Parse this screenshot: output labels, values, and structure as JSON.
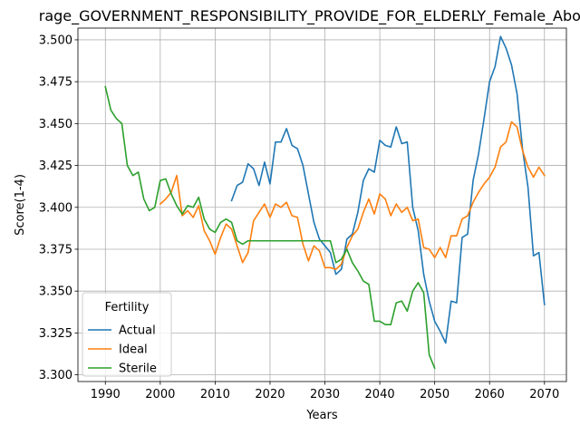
{
  "chart_data": {
    "type": "line",
    "title": "rage_GOVERNMENT_RESPONSIBILITY_PROVIDE_FOR_ELDERLY_Female_Above_",
    "xlabel": "Years",
    "ylabel": "Score(1-4)",
    "xlim": [
      1985,
      2074
    ],
    "ylim": [
      3.296,
      3.507
    ],
    "xticks": [
      1990,
      2000,
      2010,
      2020,
      2030,
      2040,
      2050,
      2060,
      2070
    ],
    "yticks": [
      3.3,
      3.325,
      3.35,
      3.375,
      3.4,
      3.425,
      3.45,
      3.475,
      3.5
    ],
    "ytick_labels": [
      "3.300",
      "3.325",
      "3.350",
      "3.375",
      "3.400",
      "3.425",
      "3.450",
      "3.475",
      "3.500"
    ],
    "grid": true,
    "legend": {
      "title": "Fertility",
      "position": "bottom-left"
    },
    "series": [
      {
        "name": "Actual",
        "color": "#1f77b4",
        "x": [
          2013,
          2014,
          2015,
          2016,
          2017,
          2018,
          2019,
          2020,
          2021,
          2022,
          2023,
          2024,
          2025,
          2026,
          2027,
          2028,
          2029,
          2030,
          2031,
          2032,
          2033,
          2034,
          2035,
          2036,
          2037,
          2038,
          2039,
          2040,
          2041,
          2042,
          2043,
          2044,
          2045,
          2046,
          2047,
          2048,
          2049,
          2050,
          2051,
          2052,
          2053,
          2054,
          2055,
          2056,
          2057,
          2058,
          2059,
          2060,
          2061,
          2062,
          2063,
          2064,
          2065,
          2066,
          2067,
          2068,
          2069,
          2070
        ],
        "values": [
          3.404,
          3.413,
          3.415,
          3.426,
          3.423,
          3.413,
          3.427,
          3.414,
          3.439,
          3.439,
          3.447,
          3.437,
          3.435,
          3.425,
          3.408,
          3.391,
          3.381,
          3.377,
          3.373,
          3.36,
          3.363,
          3.381,
          3.384,
          3.397,
          3.416,
          3.423,
          3.421,
          3.44,
          3.437,
          3.436,
          3.448,
          3.438,
          3.439,
          3.4,
          3.386,
          3.36,
          3.344,
          3.332,
          3.326,
          3.319,
          3.344,
          3.343,
          3.382,
          3.384,
          3.416,
          3.432,
          3.453,
          3.475,
          3.484,
          3.502,
          3.495,
          3.485,
          3.468,
          3.435,
          3.412,
          3.371,
          3.373,
          3.342
        ]
      },
      {
        "name": "Ideal",
        "color": "#ff7f0e",
        "x": [
          2000,
          2001,
          2002,
          2003,
          2004,
          2005,
          2006,
          2007,
          2008,
          2009,
          2010,
          2011,
          2012,
          2013,
          2014,
          2015,
          2016,
          2017,
          2018,
          2019,
          2020,
          2021,
          2022,
          2023,
          2024,
          2025,
          2026,
          2027,
          2028,
          2029,
          2030,
          2031,
          2032,
          2033,
          2034,
          2035,
          2036,
          2037,
          2038,
          2039,
          2040,
          2041,
          2042,
          2043,
          2044,
          2045,
          2046,
          2047,
          2048,
          2049,
          2050,
          2051,
          2052,
          2053,
          2054,
          2055,
          2056,
          2057,
          2058,
          2059,
          2060,
          2061,
          2062,
          2063,
          2064,
          2065,
          2066,
          2067,
          2068,
          2069,
          2070
        ],
        "values": [
          3.402,
          3.405,
          3.409,
          3.419,
          3.395,
          3.398,
          3.394,
          3.401,
          3.386,
          3.38,
          3.372,
          3.382,
          3.39,
          3.387,
          3.377,
          3.367,
          3.373,
          3.392,
          3.397,
          3.402,
          3.394,
          3.402,
          3.4,
          3.403,
          3.395,
          3.394,
          3.378,
          3.368,
          3.377,
          3.374,
          3.364,
          3.364,
          3.363,
          3.366,
          3.376,
          3.383,
          3.387,
          3.397,
          3.405,
          3.396,
          3.408,
          3.405,
          3.395,
          3.402,
          3.397,
          3.4,
          3.392,
          3.393,
          3.376,
          3.375,
          3.37,
          3.376,
          3.37,
          3.383,
          3.383,
          3.393,
          3.395,
          3.403,
          3.409,
          3.414,
          3.418,
          3.424,
          3.436,
          3.439,
          3.451,
          3.448,
          3.434,
          3.424,
          3.418,
          3.424,
          3.419
        ]
      },
      {
        "name": "Sterile",
        "color": "#2ca02c",
        "x": [
          1990,
          1991,
          1992,
          1993,
          1994,
          1995,
          1996,
          1997,
          1998,
          1999,
          2000,
          2001,
          2002,
          2003,
          2004,
          2005,
          2006,
          2007,
          2008,
          2009,
          2010,
          2011,
          2012,
          2013,
          2014,
          2015,
          2016,
          2017,
          2018,
          2019,
          2020,
          2021,
          2022,
          2023,
          2024,
          2025,
          2026,
          2027,
          2028,
          2029,
          2030,
          2031,
          2032,
          2033,
          2034,
          2035,
          2036,
          2037,
          2038,
          2039,
          2040,
          2041,
          2042,
          2043,
          2044,
          2045,
          2046,
          2047,
          2048,
          2049,
          2050
        ],
        "values": [
          3.472,
          3.458,
          3.453,
          3.45,
          3.425,
          3.419,
          3.421,
          3.405,
          3.398,
          3.4,
          3.416,
          3.417,
          3.408,
          3.401,
          3.396,
          3.401,
          3.4,
          3.406,
          3.393,
          3.387,
          3.385,
          3.391,
          3.393,
          3.391,
          3.38,
          3.378,
          3.38,
          3.38,
          3.38,
          3.38,
          3.38,
          3.38,
          3.38,
          3.38,
          3.38,
          3.38,
          3.38,
          3.38,
          3.38,
          3.38,
          3.38,
          3.38,
          3.367,
          3.369,
          3.375,
          3.367,
          3.362,
          3.356,
          3.354,
          3.332,
          3.332,
          3.33,
          3.33,
          3.343,
          3.344,
          3.338,
          3.35,
          3.355,
          3.349,
          3.312,
          3.304
        ]
      }
    ]
  }
}
